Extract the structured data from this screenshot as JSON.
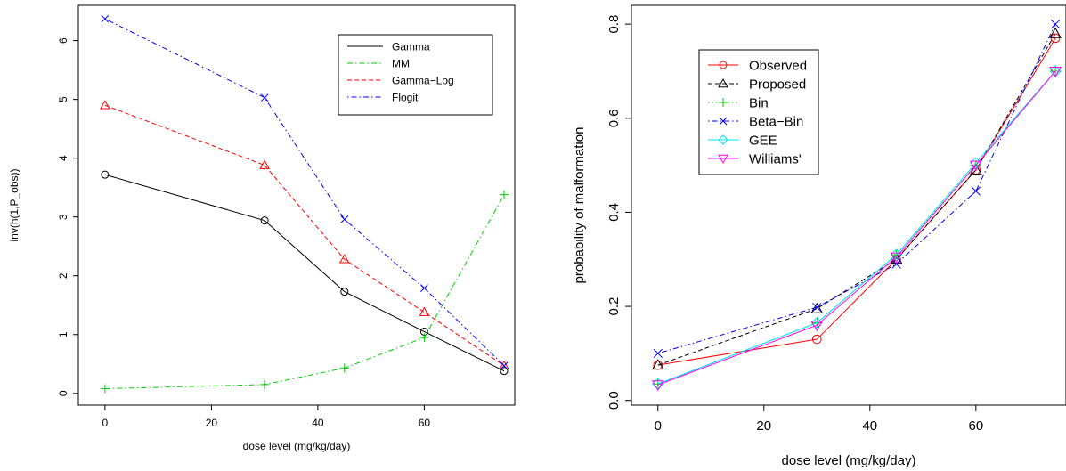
{
  "chart_data": [
    {
      "type": "line",
      "xlabel": "dose level (mg/kg/day)",
      "ylabel": "inv(h(1,P_obs))",
      "xlim": [
        -5,
        77
      ],
      "ylim": [
        -0.2,
        6.6
      ],
      "xticks": [
        "0",
        "20",
        "40",
        "60"
      ],
      "yticks": [
        "0",
        "1",
        "2",
        "3",
        "4",
        "5",
        "6"
      ],
      "legend_position": "top-right",
      "x": [
        0,
        30,
        45,
        60,
        75
      ],
      "series": [
        {
          "name": "Gamma",
          "values": [
            3.72,
            2.94,
            1.73,
            1.05,
            0.38
          ],
          "color": "#000000",
          "dash": "solid",
          "marker": "circle"
        },
        {
          "name": "MM",
          "values": [
            0.08,
            0.15,
            0.43,
            0.95,
            3.38
          ],
          "color": "#00cd00",
          "dash": "dashdot",
          "marker": "plus"
        },
        {
          "name": "Gamma−Log",
          "values": [
            4.9,
            3.88,
            2.28,
            1.38,
            0.47
          ],
          "color": "#ff0000",
          "dash": "dashed",
          "marker": "triangle"
        },
        {
          "name": "Flogit",
          "values": [
            6.37,
            5.03,
            2.96,
            1.79,
            0.47
          ],
          "color": "#0000ff",
          "dash": "dotdash",
          "marker": "cross"
        }
      ]
    },
    {
      "type": "line",
      "xlabel": "dose level (mg/kg/day)",
      "ylabel": "probability of malformation",
      "xlim": [
        -5,
        77
      ],
      "ylim": [
        -0.01,
        0.84
      ],
      "xticks": [
        "0",
        "20",
        "40",
        "60"
      ],
      "yticks": [
        "0.0",
        "0.2",
        "0.4",
        "0.6",
        "0.8"
      ],
      "legend_position": "top-left",
      "x": [
        0,
        30,
        45,
        60,
        75
      ],
      "series": [
        {
          "name": "Observed",
          "values": [
            0.075,
            0.13,
            0.3,
            0.49,
            0.77
          ],
          "color": "#ff0000",
          "dash": "solid",
          "marker": "circle"
        },
        {
          "name": "Proposed",
          "values": [
            0.075,
            0.195,
            0.3,
            0.49,
            0.78
          ],
          "color": "#000000",
          "dash": "dashed",
          "marker": "triangle"
        },
        {
          "name": "Bin",
          "values": [
            0.035,
            0.165,
            0.31,
            0.5,
            0.7
          ],
          "color": "#00cd00",
          "dash": "dotted",
          "marker": "plus"
        },
        {
          "name": "Beta−Bin",
          "values": [
            0.1,
            0.198,
            0.29,
            0.445,
            0.8
          ],
          "color": "#0000ff",
          "dash": "dotdash",
          "marker": "cross"
        },
        {
          "name": "GEE",
          "values": [
            0.035,
            0.165,
            0.31,
            0.505,
            0.7
          ],
          "color": "#00e5ee",
          "dash": "solid",
          "marker": "diamond"
        },
        {
          "name": "Williams'",
          "values": [
            0.033,
            0.16,
            0.305,
            0.5,
            0.7
          ],
          "color": "#ff00ff",
          "dash": "solid",
          "marker": "triangle-down"
        }
      ]
    }
  ]
}
